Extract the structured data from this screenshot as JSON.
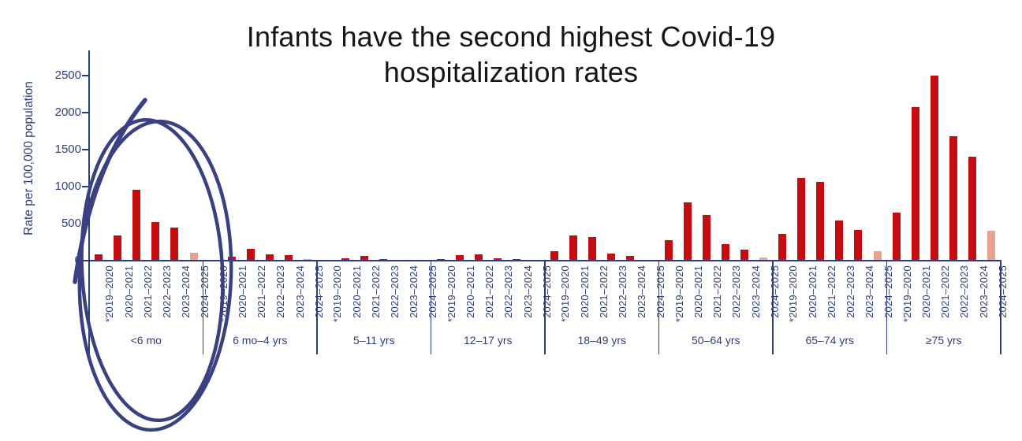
{
  "title": {
    "line1": "Infants have the second highest Covid-19",
    "line2": "hospitalization rates"
  },
  "y_axis": {
    "label": "Rate per 100,000 population",
    "ticks": [
      0,
      500,
      1000,
      1500,
      2000,
      2500
    ],
    "max": 2500
  },
  "annotation": {
    "type": "hand-drawn-ellipse",
    "highlights_group": "<6 mo",
    "color": "#3a4183"
  },
  "colors": {
    "bar_red": "#c40d10",
    "bar_partial_pink": "#e9a28f",
    "axis_blue": "#2f3e7b",
    "annotation_navy": "#3a4183",
    "title_ink": "#161616"
  },
  "chart_data": {
    "type": "bar",
    "title": "Infants have the second highest Covid-19 hospitalization rates",
    "xlabel": "",
    "ylabel": "Rate per 100,000 population",
    "ylim": [
      0,
      2500
    ],
    "grid": false,
    "legend": "none",
    "seasons": [
      "*2019–2020",
      "2020–2021",
      "2021–2022",
      "2022–2023",
      "2023–2024",
      "2024–2025"
    ],
    "partial_season_index": 5,
    "partial_season_note": "2024–2025 bars shown in lighter pink (partial season)",
    "groups": [
      {
        "label": "<6 mo",
        "values": [
          90,
          340,
          960,
          525,
          445,
          105
        ]
      },
      {
        "label": "6 mo–4 yrs",
        "values": [
          10,
          55,
          160,
          85,
          75,
          20
        ]
      },
      {
        "label": "5–11 yrs",
        "values": [
          5,
          35,
          60,
          25,
          15,
          5
        ]
      },
      {
        "label": "12–17 yrs",
        "values": [
          20,
          70,
          90,
          30,
          20,
          5
        ]
      },
      {
        "label": "18–49 yrs",
        "values": [
          125,
          340,
          320,
          95,
          60,
          10
        ]
      },
      {
        "label": "50–64 yrs",
        "values": [
          275,
          790,
          620,
          220,
          150,
          40
        ]
      },
      {
        "label": "65–74 yrs",
        "values": [
          365,
          1120,
          1060,
          545,
          420,
          125
        ]
      },
      {
        "label": "≥75 yrs",
        "values": [
          650,
          2070,
          2500,
          1680,
          1400,
          400
        ]
      }
    ]
  }
}
